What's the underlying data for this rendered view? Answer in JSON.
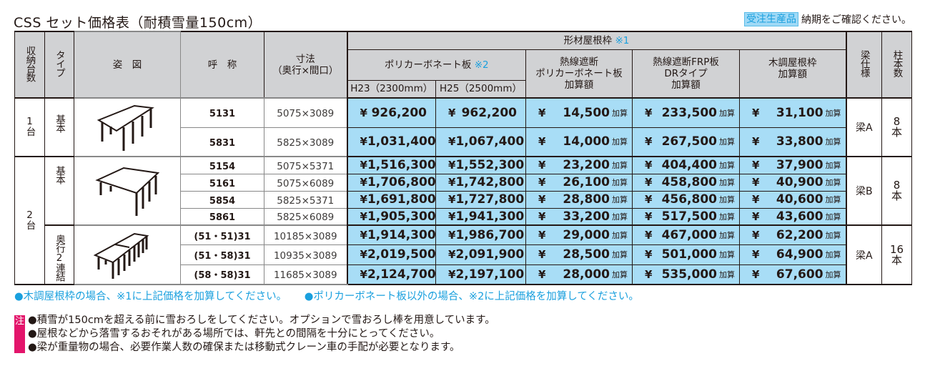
{
  "title": "CSS セット価格表（耐積雪量150cm）",
  "order_note": {
    "badge": "受注生産品",
    "text": "納期をご確認ください。"
  },
  "header": {
    "count": "収納台数",
    "type": "タイプ",
    "figure": "姿　図",
    "name": "呼　称",
    "size_line1": "寸法",
    "size_line2": "（奥行×間口）",
    "frame_group": "形材屋根枠",
    "frame_group_mark": "※1",
    "poly": "ポリカーボネート板",
    "poly_mark": "※2",
    "h23": "H23（2300mm）",
    "h25": "H25（2500mm）",
    "heat_poly_line1": "熱線遮断",
    "heat_poly_line2": "ポリカーボネート板",
    "heat_poly_line3": "加算額",
    "frp_line1": "熱線遮断FRP板",
    "frp_line2": "DRタイプ",
    "frp_line3": "加算額",
    "wood_line1": "木調屋根枠",
    "wood_line2": "加算額",
    "beam": "梁仕様",
    "pillars": "柱本数"
  },
  "currency": "¥",
  "add_suffix": "加算",
  "groups": [
    {
      "count": "1台",
      "types": [
        {
          "type": "基本",
          "figure": "single-carport-icon",
          "beam": "梁A",
          "pillars_num": "8",
          "pillars_unit": "本",
          "rows": [
            {
              "name": "5131",
              "size": "5075×3089",
              "h23": "926,200",
              "h25": "962,200",
              "heat_poly": "14,500",
              "frp": "233,500",
              "wood": "31,100"
            },
            {
              "name": "5831",
              "size": "5825×3089",
              "h23": "1,031,400",
              "h25": "1,067,400",
              "heat_poly": "14,000",
              "frp": "267,500",
              "wood": "33,800"
            }
          ]
        }
      ]
    },
    {
      "count": "2台",
      "types": [
        {
          "type": "基本",
          "figure": "wide-carport-icon",
          "beam": "梁B",
          "pillars_num": "8",
          "pillars_unit": "本",
          "rows": [
            {
              "name": "5154",
              "size": "5075×5371",
              "h23": "1,516,300",
              "h25": "1,552,300",
              "heat_poly": "23,200",
              "frp": "404,400",
              "wood": "37,900"
            },
            {
              "name": "5161",
              "size": "5075×6089",
              "h23": "1,706,800",
              "h25": "1,742,800",
              "heat_poly": "26,100",
              "frp": "458,800",
              "wood": "40,900"
            },
            {
              "name": "5854",
              "size": "5825×5371",
              "h23": "1,691,800",
              "h25": "1,727,800",
              "heat_poly": "28,800",
              "frp": "456,800",
              "wood": "40,600"
            },
            {
              "name": "5861",
              "size": "5825×6089",
              "h23": "1,905,300",
              "h25": "1,941,300",
              "heat_poly": "33,200",
              "frp": "517,500",
              "wood": "43,600"
            }
          ]
        },
        {
          "type": "奥行2連結",
          "figure": "tandem-carport-icon",
          "beam": "梁A",
          "pillars_num": "16",
          "pillars_unit": "本",
          "rows": [
            {
              "name": "(51・51)31",
              "size": "10185×3089",
              "h23": "1,914,300",
              "h25": "1,986,700",
              "heat_poly": "29,000",
              "frp": "467,000",
              "wood": "62,200"
            },
            {
              "name": "(51・58)31",
              "size": "10935×3089",
              "h23": "2,019,500",
              "h25": "2,091,900",
              "heat_poly": "28,500",
              "frp": "501,000",
              "wood": "64,900"
            },
            {
              "name": "(58・58)31",
              "size": "11685×3089",
              "h23": "2,124,700",
              "h25": "2,197,100",
              "heat_poly": "28,000",
              "frp": "535,000",
              "wood": "67,600"
            }
          ]
        }
      ]
    }
  ],
  "footnotes": [
    "●木調屋根枠の場合、※1に上記価格を加算してください。",
    "●ポリカーボネート板以外の場合、※2に上記価格を加算してください。"
  ],
  "caution": {
    "badge": "注",
    "lines": [
      "●積雪が150cmを超える前に雪おろしをしてください。オプションで雪おろし棒を用意しています。",
      "●屋根などから落雪するおそれがある場所では、軒先との間隔を十分にとってください。",
      "●梁が重量物の場合、必要作業人数の確保または移動式クレーン車の手配が必要となります。"
    ]
  },
  "colors": {
    "header_bg": "#d1d2d4",
    "price_bg": "#a8ddf6",
    "accent_blue": "#1aa0de",
    "caution_pink": "#e3156b"
  }
}
